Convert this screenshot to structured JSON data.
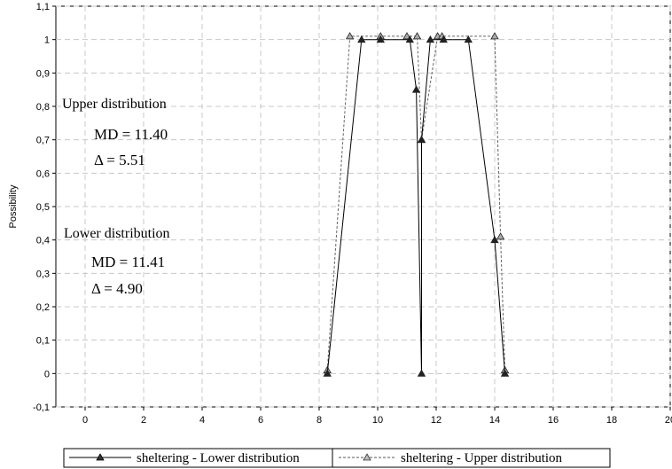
{
  "chart_data": {
    "type": "line",
    "xlabel": "",
    "ylabel": "Possibility",
    "xlim": [
      -1,
      20
    ],
    "ylim": [
      -0.1,
      1.1
    ],
    "xticks": [
      0,
      2,
      4,
      6,
      8,
      10,
      12,
      14,
      16,
      18,
      20
    ],
    "yticks": [
      "-0,1",
      "0",
      "0,1",
      "0,2",
      "0,3",
      "0,4",
      "0,5",
      "0,6",
      "0,7",
      "0,8",
      "0,9",
      "1",
      "1,1"
    ],
    "grid": true,
    "legend_position": "bottom",
    "series": [
      {
        "name": "sheltering - Lower distribution",
        "style": "solid",
        "color": "#000000",
        "points": [
          [
            8.28,
            0
          ],
          [
            9.45,
            1
          ],
          [
            10.1,
            1
          ],
          [
            11.1,
            1
          ],
          [
            11.32,
            0.85
          ],
          [
            11.5,
            0
          ],
          [
            11.5,
            0.7
          ],
          [
            11.8,
            1
          ],
          [
            12.25,
            1
          ],
          [
            13.1,
            1
          ],
          [
            14.0,
            0.4
          ],
          [
            14.35,
            0
          ]
        ]
      },
      {
        "name": "sheltering - Upper distribution",
        "style": "dashed",
        "color": "#666666",
        "points": [
          [
            8.28,
            0.01
          ],
          [
            9.05,
            1.01
          ],
          [
            10.1,
            1.01
          ],
          [
            11.0,
            1.01
          ],
          [
            11.35,
            1.01
          ],
          [
            11.5,
            0.7
          ],
          [
            12.05,
            1.01
          ],
          [
            12.2,
            1.01
          ],
          [
            14.0,
            1.01
          ],
          [
            14.2,
            0.41
          ],
          [
            14.35,
            0.01
          ]
        ]
      }
    ],
    "annotations": [
      {
        "id": "upper_title",
        "text": "Upper distribution"
      },
      {
        "id": "upper_md",
        "text": "MD =  11.40"
      },
      {
        "id": "upper_delta",
        "text": "Δ   =  5.51"
      },
      {
        "id": "lower_title",
        "text": "Lower distribution"
      },
      {
        "id": "lower_md",
        "text": "MD = 11.41"
      },
      {
        "id": "lower_delta",
        "text": "Δ   = 4.90"
      }
    ]
  }
}
